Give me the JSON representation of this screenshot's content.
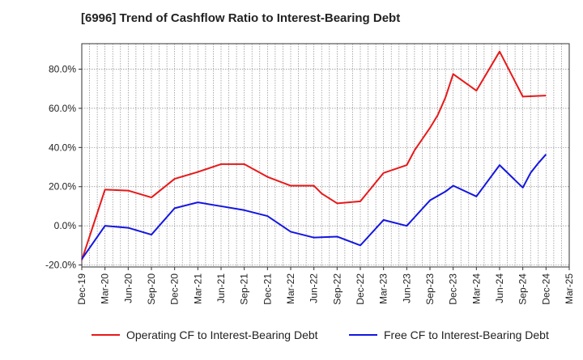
{
  "chart_data": {
    "type": "line",
    "title": "[6996]  Trend of Cashflow Ratio to Interest-Bearing Debt",
    "xlabel": "",
    "ylabel": "",
    "x_tick_labels": [
      "Dec-19",
      "Mar-20",
      "Jun-20",
      "Sep-20",
      "Dec-20",
      "Mar-21",
      "Jun-21",
      "Sep-21",
      "Dec-21",
      "Mar-22",
      "Jun-22",
      "Sep-22",
      "Dec-22",
      "Mar-23",
      "Jun-23",
      "Sep-23",
      "Dec-23",
      "Mar-24",
      "Jun-24",
      "Sep-24",
      "Dec-24",
      "Mar-25"
    ],
    "y_ticks": [
      -20,
      0,
      20,
      40,
      60,
      80
    ],
    "y_tick_labels": [
      "-20.0%",
      "0.0%",
      "20.0%",
      "40.0%",
      "60.0%",
      "80.0%"
    ],
    "ylim": [
      -21,
      93
    ],
    "grid": true,
    "legend_position": "bottom",
    "series": [
      {
        "name": "Operating CF to Interest-Bearing Debt",
        "color": "#e8191a",
        "x": [
          "Dec-19",
          "Mar-20",
          "Jun-20",
          "Sep-20",
          "Dec-20",
          "Mar-21",
          "Jun-21",
          "Sep-21",
          "Dec-21",
          "Mar-22",
          "Jun-22",
          "Jul-22",
          "Sep-22",
          "Dec-22",
          "Mar-23",
          "Jun-23",
          "Jul-23",
          "Sep-23",
          "Oct-23",
          "Nov-23",
          "Dec-23",
          "Mar-24",
          "Jun-24",
          "Sep-24",
          "Dec-24"
        ],
        "values": [
          -17.5,
          18.5,
          18.0,
          14.5,
          24.0,
          27.5,
          31.5,
          31.5,
          25.0,
          20.5,
          20.5,
          16.5,
          11.5,
          12.5,
          27.0,
          31.0,
          38.5,
          50.0,
          56.5,
          65.5,
          77.5,
          69.0,
          89.0,
          66.0,
          66.5
        ]
      },
      {
        "name": "Free CF to Interest-Bearing Debt",
        "color": "#1416e0",
        "x": [
          "Dec-19",
          "Mar-20",
          "Jun-20",
          "Sep-20",
          "Dec-20",
          "Mar-21",
          "Jun-21",
          "Sep-21",
          "Dec-21",
          "Mar-22",
          "Jun-22",
          "Sep-22",
          "Dec-22",
          "Mar-23",
          "Jun-23",
          "Sep-23",
          "Nov-23",
          "Dec-23",
          "Mar-24",
          "Jun-24",
          "Sep-24",
          "Oct-24",
          "Nov-24",
          "Dec-24"
        ],
        "values": [
          -17.0,
          0.0,
          -1.0,
          -4.5,
          9.0,
          12.0,
          10.0,
          8.0,
          5.0,
          -3.0,
          -6.0,
          -5.5,
          -10.0,
          3.0,
          0.0,
          13.0,
          17.5,
          20.5,
          15.0,
          31.0,
          19.5,
          27.0,
          32.0,
          36.5
        ]
      }
    ]
  }
}
